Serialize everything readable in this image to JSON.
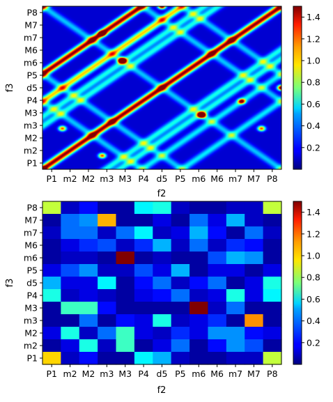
{
  "chart_data": [
    {
      "type": "heatmap",
      "style": "smooth-interpolated",
      "xlabel": "f2",
      "ylabel": "f3",
      "x_categories": [
        "P1",
        "m2",
        "M2",
        "m3",
        "M3",
        "P4",
        "d5",
        "P5",
        "m6",
        "M6",
        "m7",
        "M7",
        "P8"
      ],
      "y_categories": [
        "P1",
        "m2",
        "M2",
        "m3",
        "M3",
        "P4",
        "d5",
        "P5",
        "m6",
        "M6",
        "m7",
        "M7",
        "P8"
      ],
      "colormap": "jet",
      "colorbar": {
        "min": 0.0,
        "max": 1.5,
        "ticks": [
          "0.2",
          "0.4",
          "0.6",
          "0.8",
          "1.0",
          "1.2",
          "1.4"
        ]
      },
      "ridge_lines_ratio": [
        [
          1.0,
          1.0,
          2.0,
          2.0
        ],
        [
          1.0,
          1.0,
          1.333,
          1.333
        ],
        [
          1.0,
          2.0,
          2.0,
          1.0
        ],
        [
          1.0,
          2.0,
          1.5,
          1.333
        ],
        [
          1.0,
          1.5,
          2.0,
          1.333
        ],
        [
          1.0,
          1.333,
          2.0,
          1.5
        ],
        [
          1.0,
          1.5,
          1.333,
          2.0
        ],
        [
          1.2,
          1.0,
          1.5,
          1.25
        ],
        [
          1.0,
          1.2,
          2.0,
          1.6
        ],
        [
          1.25,
          1.0,
          1.6,
          1.2
        ],
        [
          1.0,
          1.25,
          2.0,
          1.6
        ]
      ],
      "hotspots": [
        {
          "x": "M3",
          "y": "m6",
          "value": 1.4
        },
        {
          "x": "m6",
          "y": "M3",
          "value": 1.35
        },
        {
          "x": "d5",
          "y": "P8",
          "value": 1.05
        },
        {
          "x": "P8",
          "y": "d5",
          "value": 1.05
        },
        {
          "x": "m7",
          "y": "P4",
          "value": 0.75
        },
        {
          "x": "P1",
          "y": "P1",
          "value": 0.75
        },
        {
          "x": "m3",
          "y": "m7",
          "value": 0.7
        },
        {
          "x": "m3",
          "y": "m2",
          "value": 0.7
        },
        {
          "x": "m2",
          "y": "m3",
          "value": 0.7
        },
        {
          "x": "M7",
          "y": "m3",
          "value": 0.7
        }
      ]
    },
    {
      "type": "heatmap",
      "style": "discrete-cells",
      "xlabel": "f2",
      "ylabel": "f3",
      "x_categories": [
        "P1",
        "m2",
        "M2",
        "m3",
        "M3",
        "P4",
        "d5",
        "P5",
        "m6",
        "M6",
        "m7",
        "M7",
        "P8"
      ],
      "y_categories": [
        "P8",
        "M7",
        "m7",
        "M6",
        "m6",
        "P5",
        "d5",
        "P4",
        "M3",
        "m3",
        "M2",
        "m2",
        "P1"
      ],
      "colormap": "jet",
      "colorbar": {
        "min": 0.0,
        "max": 1.5,
        "ticks": [
          "0.2",
          "0.4",
          "0.6",
          "0.8",
          "1.0",
          "1.2",
          "1.4"
        ]
      },
      "values": [
        [
          0.85,
          0.1,
          0.2,
          0.05,
          0.05,
          0.55,
          0.6,
          0.1,
          0.05,
          0.05,
          0.1,
          0.1,
          0.85
        ],
        [
          0.05,
          0.35,
          0.4,
          1.05,
          0.05,
          0.05,
          0.15,
          0.05,
          0.35,
          0.15,
          0.45,
          0.1,
          0.05
        ],
        [
          0.1,
          0.35,
          0.35,
          0.1,
          0.35,
          0.55,
          0.1,
          0.15,
          0.45,
          0.2,
          0.05,
          0.35,
          0.1
        ],
        [
          0.05,
          0.15,
          0.25,
          0.3,
          0.1,
          0.25,
          0.45,
          0.1,
          0.35,
          0.1,
          0.25,
          0.2,
          0.05
        ],
        [
          0.05,
          0.1,
          0.1,
          0.05,
          1.5,
          0.05,
          0.1,
          0.05,
          0.05,
          0.3,
          0.45,
          0.4,
          0.05
        ],
        [
          0.15,
          0.3,
          0.4,
          0.1,
          0.1,
          0.3,
          0.15,
          0.45,
          0.05,
          0.15,
          0.15,
          0.05,
          0.15
        ],
        [
          0.45,
          0.15,
          0.15,
          0.55,
          0.05,
          0.2,
          0.35,
          0.1,
          0.2,
          0.35,
          0.05,
          0.15,
          0.6
        ],
        [
          0.6,
          0.1,
          0.15,
          0.1,
          0.05,
          0.15,
          0.2,
          0.35,
          0.1,
          0.15,
          0.6,
          0.15,
          0.55
        ],
        [
          0.05,
          0.65,
          0.65,
          0.2,
          0.05,
          0.05,
          0.05,
          0.05,
          1.5,
          0.1,
          0.35,
          0.05,
          0.05
        ],
        [
          0.05,
          0.05,
          0.35,
          0.05,
          0.2,
          0.15,
          0.6,
          0.1,
          0.15,
          0.25,
          0.05,
          1.1,
          0.05
        ],
        [
          0.15,
          0.6,
          0.1,
          0.35,
          0.65,
          0.15,
          0.1,
          0.25,
          0.15,
          0.4,
          0.4,
          0.2,
          0.15
        ],
        [
          0.05,
          0.15,
          0.6,
          0.1,
          0.65,
          0.05,
          0.15,
          0.35,
          0.05,
          0.2,
          0.4,
          0.3,
          0.05
        ],
        [
          1.0,
          0.1,
          0.2,
          0.05,
          0.05,
          0.55,
          0.45,
          0.1,
          0.05,
          0.05,
          0.1,
          0.1,
          0.85
        ]
      ]
    }
  ]
}
